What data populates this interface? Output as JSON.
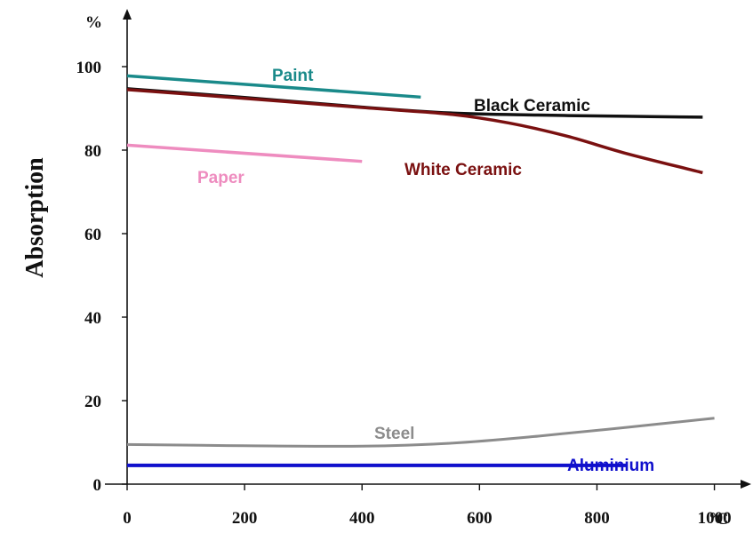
{
  "chart_data": {
    "type": "line",
    "ylabel": "Absorption",
    "y_unit": "%",
    "x_unit": "°C",
    "xlim": [
      0,
      1040
    ],
    "ylim": [
      0,
      104
    ],
    "x_ticks": [
      0,
      200,
      400,
      600,
      800,
      1000
    ],
    "y_ticks": [
      0,
      20,
      40,
      60,
      80,
      100
    ],
    "grid": false,
    "legend": "labels placed next to each line",
    "series": [
      {
        "name": "Paint",
        "color": "#1a8a8a",
        "points": [
          [
            0,
            97.8
          ],
          [
            500,
            92.7
          ]
        ]
      },
      {
        "name": "Black Ceramic",
        "color": "#111111",
        "points": [
          [
            0,
            94.7
          ],
          [
            200,
            92.6
          ],
          [
            400,
            90.3
          ],
          [
            550,
            88.9
          ],
          [
            700,
            88.4
          ],
          [
            850,
            88.1
          ],
          [
            980,
            87.9
          ]
        ]
      },
      {
        "name": "White Ceramic",
        "color": "#7a1010",
        "points": [
          [
            0,
            94.5
          ],
          [
            200,
            92.4
          ],
          [
            400,
            90.2
          ],
          [
            550,
            88.6
          ],
          [
            650,
            86.5
          ],
          [
            750,
            83.3
          ],
          [
            850,
            79.2
          ],
          [
            980,
            74.6
          ]
        ]
      },
      {
        "name": "Paper",
        "color": "#ee8cbf",
        "points": [
          [
            0,
            81.2
          ],
          [
            400,
            77.3
          ]
        ]
      },
      {
        "name": "Steel",
        "color": "#8c8c8c",
        "points": [
          [
            0,
            9.5
          ],
          [
            200,
            9.2
          ],
          [
            400,
            9.1
          ],
          [
            550,
            9.8
          ],
          [
            700,
            11.5
          ],
          [
            850,
            13.6
          ],
          [
            1000,
            15.8
          ]
        ]
      },
      {
        "name": "Aluminium",
        "color": "#1010cc",
        "points": [
          [
            0,
            4.5
          ],
          [
            850,
            4.5
          ]
        ]
      }
    ]
  }
}
